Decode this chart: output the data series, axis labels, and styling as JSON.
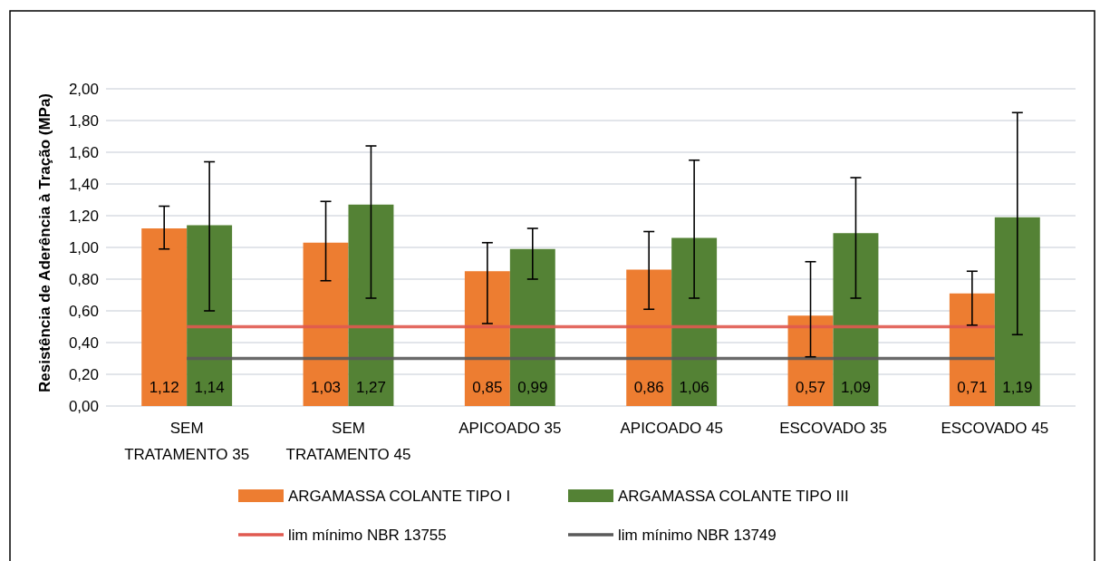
{
  "chart_data": {
    "type": "bar",
    "ylabel": "Resistência de Aderência à Tração (MPa)",
    "categories": [
      "SEM TRATAMENTO 35",
      "SEM TRATAMENTO 45",
      "APICOADO 35",
      "APICOADO 45",
      "ESCOVADO 35",
      "ESCOVADO 45"
    ],
    "series": [
      {
        "name": "ARGAMASSA COLANTE TIPO I",
        "color": "#ed7d31",
        "values": [
          1.12,
          1.03,
          0.85,
          0.86,
          0.57,
          0.71
        ],
        "value_labels": [
          "1,12",
          "1,03",
          "0,85",
          "0,86",
          "0,57",
          "0,71"
        ],
        "errors": [
          [
            0.99,
            1.26
          ],
          [
            0.79,
            1.29
          ],
          [
            0.52,
            1.03
          ],
          [
            0.61,
            1.1
          ],
          [
            0.31,
            0.91
          ],
          [
            0.51,
            0.85
          ]
        ]
      },
      {
        "name": "ARGAMASSA COLANTE TIPO III",
        "color": "#548235",
        "values": [
          1.14,
          1.27,
          0.99,
          1.06,
          1.09,
          1.19
        ],
        "value_labels": [
          "1,14",
          "1,27",
          "0,99",
          "1,06",
          "1,09",
          "1,19"
        ],
        "errors": [
          [
            0.6,
            1.54
          ],
          [
            0.68,
            1.64
          ],
          [
            0.8,
            1.12
          ],
          [
            0.68,
            1.55
          ],
          [
            0.68,
            1.44
          ],
          [
            0.45,
            1.85
          ]
        ]
      }
    ],
    "ref_lines": [
      {
        "axis": "y",
        "value": 0.5,
        "label": "lim mínimo NBR 13755",
        "color": "#e05a50"
      },
      {
        "axis": "y",
        "value": 0.3,
        "label": "lim mínimo NBR 13749",
        "color": "#5a5a5a"
      }
    ],
    "ylim": [
      0,
      2
    ],
    "yticks": [
      {
        "value": 0,
        "label": "0,00"
      },
      {
        "value": 0.2,
        "label": "0,20"
      },
      {
        "value": 0.4,
        "label": "0,40"
      },
      {
        "value": 0.6,
        "label": "0,60"
      },
      {
        "value": 0.8,
        "label": "0,80"
      },
      {
        "value": 1,
        "label": "1,00"
      },
      {
        "value": 1.2,
        "label": "1,20"
      },
      {
        "value": 1.4,
        "label": "1,40"
      },
      {
        "value": 1.6,
        "label": "1,60"
      },
      {
        "value": 1.8,
        "label": "1,80"
      },
      {
        "value": 2,
        "label": "2,00"
      }
    ],
    "grid": "y",
    "legend": "bottom"
  }
}
